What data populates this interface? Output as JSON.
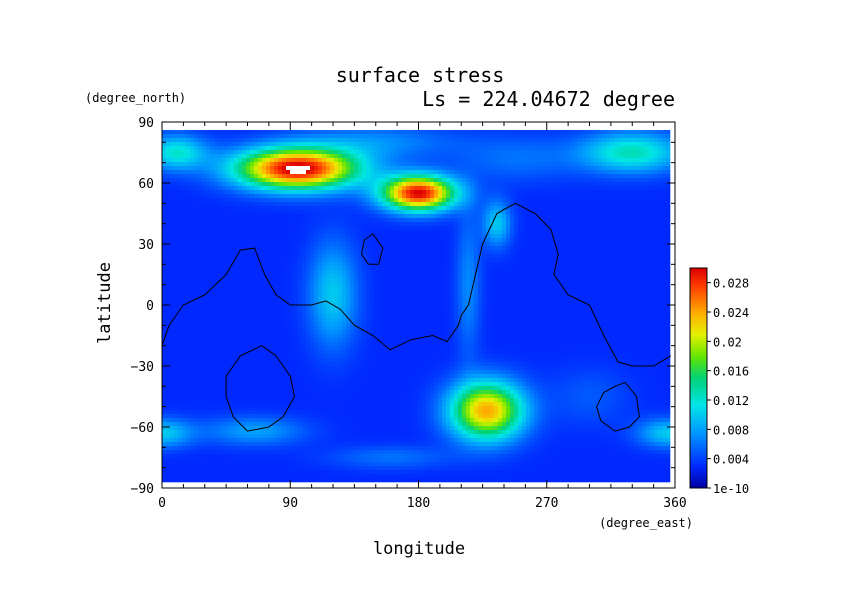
{
  "chart_data": {
    "type": "heatmap",
    "title": "surface stress",
    "subtitle": "Ls = 224.04672 degree",
    "xlabel": "longitude",
    "ylabel": "latitude",
    "x_unit": "(degree_east)",
    "y_unit": "(degree_north)",
    "xlim": [
      0,
      360
    ],
    "ylim": [
      -90,
      90
    ],
    "x_ticks": [
      "0",
      "90",
      "180",
      "270",
      "360"
    ],
    "y_ticks": [
      "90",
      "60",
      "30",
      "0",
      "−30",
      "−60",
      "−90"
    ],
    "colorbar": {
      "min": 0,
      "max": 0.03,
      "tick_labels": [
        "1e-10",
        "0.004",
        "0.008",
        "0.012",
        "0.016",
        "0.02",
        "0.024",
        "0.028"
      ],
      "tick_values": [
        0,
        0.004,
        0.008,
        0.012,
        0.016,
        0.02,
        0.024,
        0.028
      ]
    },
    "background_value": 0.003,
    "features": [
      {
        "lon": 95,
        "lat": 67,
        "sx": 30,
        "sy": 7,
        "value": 0.031
      },
      {
        "lon": 180,
        "lat": 55,
        "sx": 18,
        "sy": 6,
        "value": 0.03
      },
      {
        "lon": 228,
        "lat": -52,
        "sx": 18,
        "sy": 10,
        "value": 0.024
      },
      {
        "lon": 330,
        "lat": 75,
        "sx": 25,
        "sy": 7,
        "value": 0.013
      },
      {
        "lon": 10,
        "lat": 75,
        "sx": 15,
        "sy": 6,
        "value": 0.012
      },
      {
        "lon": 120,
        "lat": 5,
        "sx": 12,
        "sy": 18,
        "value": 0.01
      },
      {
        "lon": 215,
        "lat": 10,
        "sx": 6,
        "sy": 25,
        "value": 0.007
      },
      {
        "lon": 235,
        "lat": 40,
        "sx": 7,
        "sy": 8,
        "value": 0.01
      },
      {
        "lon": 65,
        "lat": -62,
        "sx": 25,
        "sy": 5,
        "value": 0.008
      },
      {
        "lon": 0,
        "lat": -63,
        "sx": 15,
        "sy": 5,
        "value": 0.01
      },
      {
        "lon": 355,
        "lat": -63,
        "sx": 15,
        "sy": 5,
        "value": 0.01
      },
      {
        "lon": 160,
        "lat": -75,
        "sx": 30,
        "sy": 4,
        "value": 0.006
      },
      {
        "lon": 300,
        "lat": -45,
        "sx": 20,
        "sy": 10,
        "value": 0.005
      },
      {
        "lon": 150,
        "lat": 80,
        "sx": 40,
        "sy": 6,
        "value": 0.007
      },
      {
        "lon": 250,
        "lat": 72,
        "sx": 30,
        "sy": 8,
        "value": 0.006
      }
    ],
    "contours": [
      [
        [
          0,
          -20
        ],
        [
          5,
          -10
        ],
        [
          15,
          0
        ],
        [
          30,
          5
        ],
        [
          45,
          15
        ],
        [
          55,
          27
        ],
        [
          65,
          28
        ],
        [
          72,
          15
        ],
        [
          80,
          5
        ],
        [
          90,
          0
        ],
        [
          105,
          0
        ],
        [
          115,
          2
        ],
        [
          125,
          -2
        ],
        [
          135,
          -10
        ],
        [
          148,
          -15
        ],
        [
          160,
          -22
        ],
        [
          175,
          -17
        ],
        [
          190,
          -15
        ],
        [
          200,
          -18
        ],
        [
          208,
          -10
        ],
        [
          210,
          -5
        ],
        [
          215,
          0
        ],
        [
          220,
          15
        ],
        [
          225,
          30
        ],
        [
          235,
          45
        ],
        [
          248,
          50
        ],
        [
          262,
          45
        ],
        [
          273,
          37
        ],
        [
          278,
          25
        ],
        [
          275,
          15
        ],
        [
          285,
          5
        ],
        [
          300,
          0
        ],
        [
          310,
          -15
        ],
        [
          320,
          -28
        ],
        [
          330,
          -30
        ],
        [
          345,
          -30
        ],
        [
          357,
          -25
        ]
      ],
      [
        [
          145,
          20
        ],
        [
          140,
          25
        ],
        [
          142,
          32
        ],
        [
          148,
          35
        ],
        [
          155,
          28
        ],
        [
          152,
          20
        ],
        [
          145,
          20
        ]
      ],
      [
        [
          70,
          -20
        ],
        [
          80,
          -25
        ],
        [
          90,
          -35
        ],
        [
          93,
          -45
        ],
        [
          85,
          -55
        ],
        [
          75,
          -60
        ],
        [
          60,
          -62
        ],
        [
          50,
          -55
        ],
        [
          45,
          -45
        ],
        [
          45,
          -35
        ],
        [
          55,
          -25
        ],
        [
          70,
          -20
        ]
      ],
      [
        [
          318,
          -40
        ],
        [
          325,
          -38
        ],
        [
          333,
          -45
        ],
        [
          335,
          -55
        ],
        [
          328,
          -60
        ],
        [
          318,
          -62
        ],
        [
          308,
          -57
        ],
        [
          305,
          -50
        ],
        [
          310,
          -43
        ],
        [
          318,
          -40
        ]
      ]
    ]
  }
}
